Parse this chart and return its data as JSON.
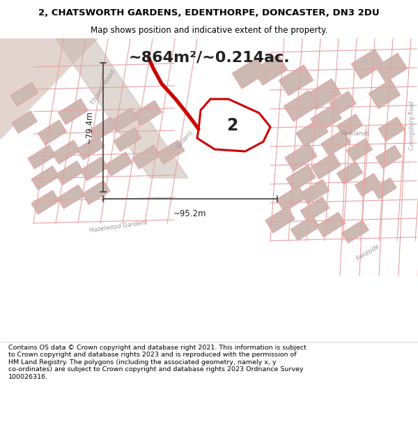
{
  "title_line1": "2, CHATSWORTH GARDENS, EDENTHORPE, DONCASTER, DN3 2DU",
  "title_line2": "Map shows position and indicative extent of the property.",
  "area_text": "~864m²/~0.214ac.",
  "footer_wrapped": "Contains OS data © Crown copyright and database right 2021. This information is subject\nto Crown copyright and database rights 2023 and is reproduced with the permission of\nHM Land Registry. The polygons (including the associated geometry, namely x, y\nco-ordinates) are subject to Crown copyright and database rights 2023 Ordnance Survey\n100026316.",
  "dim_horizontal": "~95.2m",
  "dim_vertical": "~79.4m",
  "plot_number": "2",
  "bg_color": "#f5ece8",
  "map_bg": "#f7f0ed",
  "title_bg": "#ffffff",
  "footer_bg": "#ffffff",
  "red_color": "#cc0000",
  "pink_color": "#e8a0a0",
  "gray_road_color": "#c8b8b0",
  "property_fill": "#ffffff",
  "dim_arrow_color": "#404040"
}
